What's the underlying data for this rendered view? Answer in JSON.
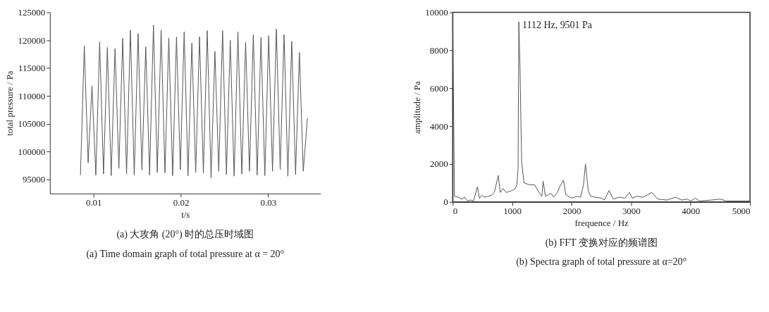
{
  "chart_data": [
    {
      "type": "line",
      "xlabel": "t/s",
      "ylabel": "total pressure / Pa",
      "xlim": [
        0.005,
        0.036
      ],
      "xticks": [
        0.01,
        0.02,
        0.03
      ],
      "ylim": [
        92500,
        125000
      ],
      "yticks": [
        95000,
        100000,
        105000,
        110000,
        115000,
        120000,
        125000
      ],
      "x": [
        0.0085,
        0.00894,
        0.00938,
        0.00982,
        0.01026,
        0.0107,
        0.01114,
        0.01158,
        0.01202,
        0.01246,
        0.0129,
        0.01334,
        0.01378,
        0.01422,
        0.01466,
        0.0151,
        0.01554,
        0.01598,
        0.01642,
        0.01686,
        0.0173,
        0.01774,
        0.01818,
        0.01862,
        0.01906,
        0.0195,
        0.01994,
        0.02038,
        0.02082,
        0.02126,
        0.0217,
        0.02214,
        0.02258,
        0.02302,
        0.02346,
        0.0239,
        0.02434,
        0.02478,
        0.02522,
        0.02566,
        0.0261,
        0.02654,
        0.02698,
        0.02742,
        0.02786,
        0.0283,
        0.02874,
        0.02918,
        0.02962,
        0.03006,
        0.0305,
        0.03094,
        0.03138,
        0.03182,
        0.03226,
        0.0327,
        0.03314,
        0.03358,
        0.03402,
        0.0345
      ],
      "series": [
        {
          "color": "#555555",
          "values": [
            95800,
            119000,
            98000,
            111800,
            95800,
            119700,
            96000,
            118700,
            95700,
            118500,
            97000,
            120300,
            96000,
            121800,
            95800,
            121200,
            96700,
            118800,
            95800,
            122700,
            96300,
            121800,
            96200,
            120400,
            95700,
            120600,
            96800,
            121500,
            95700,
            119500,
            96300,
            120600,
            96200,
            121700,
            95300,
            118000,
            96500,
            121700,
            95900,
            120000,
            95600,
            121500,
            96000,
            119600,
            96500,
            121000,
            95800,
            120500,
            95700,
            120800,
            96500,
            122000,
            96800,
            121000,
            95600,
            119800,
            95900,
            117800,
            96500,
            106000
          ]
        }
      ],
      "annotations": [
        "(a) 大攻角 (20°) 时的总压时域图",
        "(a) Time domain graph of total pressure at α = 20°"
      ]
    },
    {
      "type": "line",
      "xlabel": "frequence / Hz",
      "ylabel": "amplitude / Pa",
      "xlim": [
        0,
        5000
      ],
      "xticks": [
        0,
        1000,
        2000,
        3000,
        4000,
        5000
      ],
      "ylim": [
        0,
        10000
      ],
      "yticks": [
        0,
        2000,
        4000,
        6000,
        8000,
        10000
      ],
      "x": [
        0,
        30,
        100,
        150,
        200,
        250,
        300,
        350,
        416,
        450,
        490,
        540,
        600,
        650,
        700,
        767,
        800,
        850,
        900,
        1000,
        1050,
        1080,
        1100,
        1112,
        1132,
        1160,
        1200,
        1300,
        1380,
        1450,
        1500,
        1521,
        1560,
        1650,
        1700,
        1760,
        1800,
        1864,
        1900,
        2000,
        2100,
        2150,
        2200,
        2233,
        2280,
        2320,
        2400,
        2500,
        2550,
        2630,
        2700,
        2800,
        2900,
        2970,
        3020,
        3100,
        3200,
        3350,
        3450,
        3600,
        3750,
        3850,
        3950,
        4000,
        4080,
        4150,
        4350,
        4500,
        4600,
        5000
      ],
      "series": [
        {
          "color": "#555555",
          "values": [
            10000,
            300,
            250,
            150,
            250,
            50,
            100,
            50,
            800,
            200,
            350,
            250,
            300,
            350,
            500,
            1400,
            500,
            700,
            500,
            600,
            700,
            900,
            1800,
            9501,
            7100,
            2100,
            1000,
            900,
            900,
            500,
            300,
            1100,
            300,
            450,
            250,
            500,
            800,
            1150,
            400,
            200,
            300,
            250,
            900,
            2000,
            600,
            300,
            250,
            200,
            100,
            600,
            150,
            250,
            200,
            500,
            200,
            300,
            250,
            500,
            150,
            100,
            250,
            100,
            150,
            50,
            200,
            50,
            100,
            150,
            50,
            50
          ]
        }
      ],
      "annotations": [
        {
          "text": "1112 Hz, 9501 Pa",
          "x": 1112,
          "y": 9501
        },
        "(b) FFT 变换对应的频谱图",
        "(b) Spectra graph of total pressure at α=20°"
      ]
    }
  ]
}
